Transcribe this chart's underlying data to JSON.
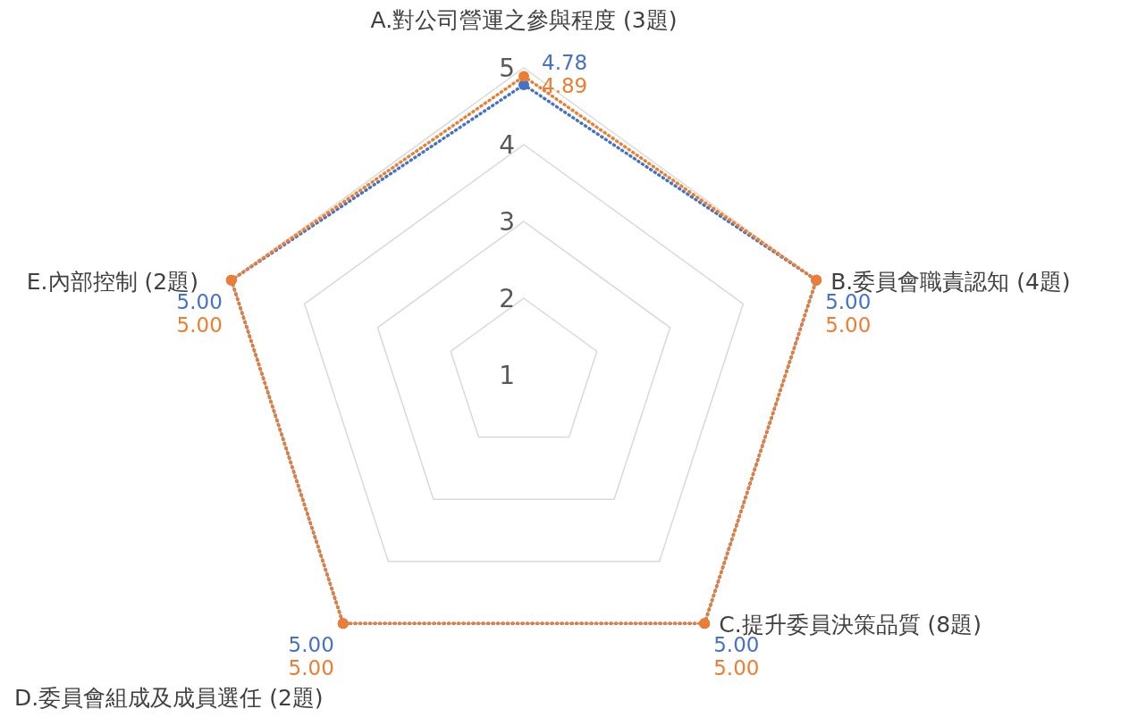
{
  "chart_data": {
    "type": "radar",
    "categories": [
      "A.對公司營運之參與程度 (3題)",
      "B.委員會職責認知 (4題)",
      "C.提升委員決策品質 (8題)",
      "D.委員會組成及成員選任 (2題)",
      "E.內部控制 (2題)"
    ],
    "series": [
      {
        "color": "#4472c4",
        "values": [
          4.78,
          5,
          5,
          5,
          5
        ],
        "value_labels": [
          "4.78",
          "5.00",
          "5.00",
          "5.00",
          "5.00"
        ]
      },
      {
        "color": "#ed7d31",
        "values": [
          4.89,
          5,
          5,
          5,
          5
        ],
        "value_labels": [
          "4.89",
          "5.00",
          "5.00",
          "5.00",
          "5.00"
        ]
      }
    ],
    "ylim": [
      1,
      5
    ],
    "yticks": [
      1,
      2,
      3,
      4,
      5
    ],
    "grid": true,
    "marker": "circle",
    "line_style": "dotted",
    "legend": false
  }
}
